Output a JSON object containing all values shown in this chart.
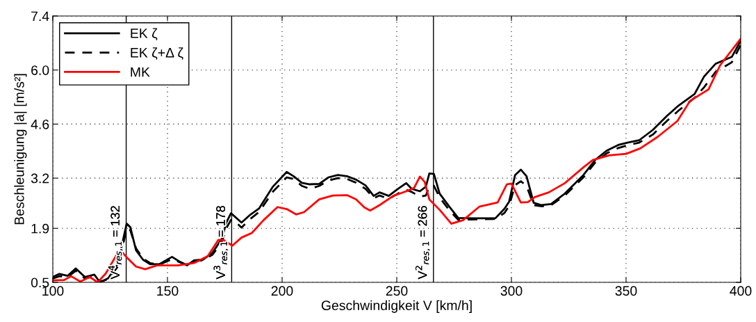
{
  "chart_data": {
    "type": "line",
    "xlabel": "Geschwindigkeit V [km/h]",
    "ylabel": "Beschleunigung |a| [m/s²]",
    "xlim": [
      100,
      400
    ],
    "xticks": [
      100,
      150,
      200,
      250,
      300,
      350,
      400
    ],
    "ylim": [
      0.5,
      7.4
    ],
    "yticks": [
      0.5,
      1.9,
      3.2,
      4.6,
      {
        "value": 6,
        "label": "6.0"
      },
      7.4
    ],
    "grid": true,
    "legend": "top left",
    "marker": "none",
    "series": [
      {
        "name": "EK ζ",
        "color": "#000000",
        "line_style": "solid",
        "x": [
          100,
          102.9,
          106.5,
          110,
          114,
          118.1,
          120.6,
          124.2,
          128.2,
          130.2,
          132.2,
          133.8,
          136.3,
          139.3,
          142.4,
          146.4,
          152,
          155.5,
          158.5,
          161.6,
          165.6,
          169.7,
          173.7,
          175.7,
          177.7,
          182.3,
          186.3,
          189.9,
          196,
          202,
          205,
          208.6,
          212.1,
          216.2,
          220.2,
          224.3,
          228.3,
          232.3,
          236.4,
          239.9,
          242.5,
          246.5,
          250.5,
          254.1,
          256.6,
          260.1,
          262.7,
          264.2,
          266.2,
          268.7,
          272.8,
          276.8,
          282.9,
          293,
          297,
          299,
          301.6,
          304.1,
          306.6,
          309.7,
          313.2,
          317.3,
          323.3,
          331.4,
          336.5,
          341.5,
          346.6,
          350.6,
          355.7,
          361.7,
          367.8,
          372.9,
          379.9,
          384,
          389,
          396.1,
          400
        ],
        "values": [
          0.64,
          0.72,
          0.67,
          0.86,
          0.64,
          0.7,
          0.5,
          0.61,
          0.97,
          1.48,
          2.02,
          1.93,
          1.33,
          1.09,
          0.97,
          0.97,
          1.16,
          1.03,
          0.94,
          1.07,
          1.09,
          1.27,
          1.63,
          2.05,
          2.29,
          2.05,
          2.26,
          2.41,
          2.98,
          3.36,
          3.25,
          3.08,
          3.04,
          3.05,
          3.22,
          3.28,
          3.25,
          3.16,
          3.01,
          2.74,
          2.83,
          2.74,
          2.92,
          3.07,
          2.92,
          2.86,
          2.98,
          3.32,
          3.31,
          2.8,
          2.47,
          2.17,
          2.16,
          2.16,
          2.41,
          2.59,
          3.28,
          3.42,
          3.25,
          2.56,
          2.5,
          2.53,
          2.8,
          3.28,
          3.67,
          3.91,
          4.06,
          4.12,
          4.18,
          4.45,
          4.81,
          5.08,
          5.38,
          5.83,
          6.16,
          6.34,
          6.76
        ]
      },
      {
        "name": "EK ζ+Δ ζ",
        "color": "#000000",
        "line_style": "dashed",
        "x": [
          100,
          102.9,
          106.5,
          110,
          114,
          118.1,
          120.6,
          124.2,
          128.2,
          130.2,
          132.2,
          133.8,
          136.3,
          139.3,
          142.4,
          146.4,
          152,
          155.5,
          158.5,
          161.6,
          165.6,
          169.7,
          173.7,
          175.7,
          177.7,
          180,
          182.3,
          186.3,
          189.9,
          196,
          202,
          205,
          208.6,
          212.1,
          216.2,
          220.2,
          224.3,
          228.3,
          232.3,
          236.4,
          239.9,
          242.5,
          246.5,
          250.5,
          254.1,
          256.6,
          260.1,
          262.7,
          264.2,
          266.2,
          268.7,
          272.8,
          276.8,
          282.9,
          293,
          297,
          299,
          301.6,
          304.1,
          306.6,
          309.7,
          313.2,
          317.3,
          323.3,
          331.4,
          336.5,
          341.5,
          346.6,
          350.6,
          355.7,
          361.7,
          367.8,
          372.9,
          379.9,
          384,
          389,
          396.1,
          400
        ],
        "values": [
          0.6,
          0.66,
          0.64,
          0.8,
          0.6,
          0.66,
          0.52,
          0.58,
          0.9,
          1.35,
          1.9,
          1.85,
          1.38,
          1.12,
          1.0,
          0.96,
          1.1,
          1.02,
          0.95,
          1.05,
          1.07,
          1.22,
          1.55,
          1.9,
          2.12,
          2.05,
          1.92,
          2.15,
          2.32,
          2.85,
          3.22,
          3.18,
          3.0,
          2.92,
          3.0,
          3.14,
          3.2,
          3.18,
          3.08,
          2.92,
          2.68,
          2.75,
          2.66,
          2.8,
          2.9,
          2.84,
          2.72,
          2.75,
          2.98,
          3.0,
          2.7,
          2.38,
          2.12,
          2.13,
          2.14,
          2.3,
          2.48,
          3.02,
          3.12,
          3.0,
          2.5,
          2.47,
          2.5,
          2.75,
          3.22,
          3.6,
          3.84,
          3.98,
          4.05,
          4.12,
          4.33,
          4.68,
          4.95,
          5.28,
          5.55,
          5.95,
          6.2,
          6.65
        ]
      },
      {
        "name": "MK",
        "color": "#ff0000",
        "line_style": "solid",
        "x": [
          100,
          104.9,
          108,
          112,
          116.1,
          119.6,
          123.1,
          127.7,
          130,
          132.2,
          136.3,
          140.3,
          145.4,
          154.5,
          161.6,
          167.6,
          172.2,
          174.7,
          178.3,
          182.3,
          186.8,
          191.9,
          198,
          202,
          206.1,
          209.6,
          216.2,
          222.2,
          228.3,
          232.3,
          235.9,
          238.4,
          242.5,
          248.5,
          254.6,
          257.6,
          260.1,
          262.2,
          264.2,
          268.7,
          273.8,
          278.9,
          286,
          294,
          298,
          300,
          304.1,
          307.2,
          310.2,
          316.3,
          323.3,
          331.4,
          335.5,
          342.6,
          350.1,
          356.2,
          363.8,
          372.4,
          377.9,
          386,
          391.1,
          400
        ],
        "values": [
          0.55,
          0.56,
          0.66,
          0.52,
          0.64,
          0.5,
          0.73,
          1.2,
          1.3,
          1.15,
          0.91,
          0.84,
          0.94,
          0.94,
          1.0,
          1.18,
          1.6,
          1.59,
          1.45,
          1.66,
          1.78,
          2.11,
          2.45,
          2.4,
          2.26,
          2.32,
          2.65,
          2.75,
          2.76,
          2.65,
          2.44,
          2.36,
          2.5,
          2.74,
          2.87,
          2.95,
          3.24,
          3.1,
          2.65,
          2.38,
          2.02,
          2.11,
          2.46,
          2.57,
          3.04,
          3.06,
          2.57,
          2.58,
          2.71,
          2.83,
          3.07,
          3.48,
          3.67,
          3.79,
          3.83,
          3.97,
          4.27,
          4.68,
          5.2,
          5.5,
          6.13,
          6.81
        ]
      }
    ],
    "ref_lines": [
      {
        "axis": "x",
        "value": 132,
        "label": "V$^{4}$$_{res,1}$ = 132",
        "color": "#000000"
      },
      {
        "axis": "x",
        "value": 178,
        "label": "V$^{3}$$_{res,1}$ = 178",
        "color": "#000000"
      },
      {
        "axis": "x",
        "value": 266,
        "label": "V$^{2}$$_{res,1}$ = 266",
        "color": "#000000"
      }
    ]
  }
}
